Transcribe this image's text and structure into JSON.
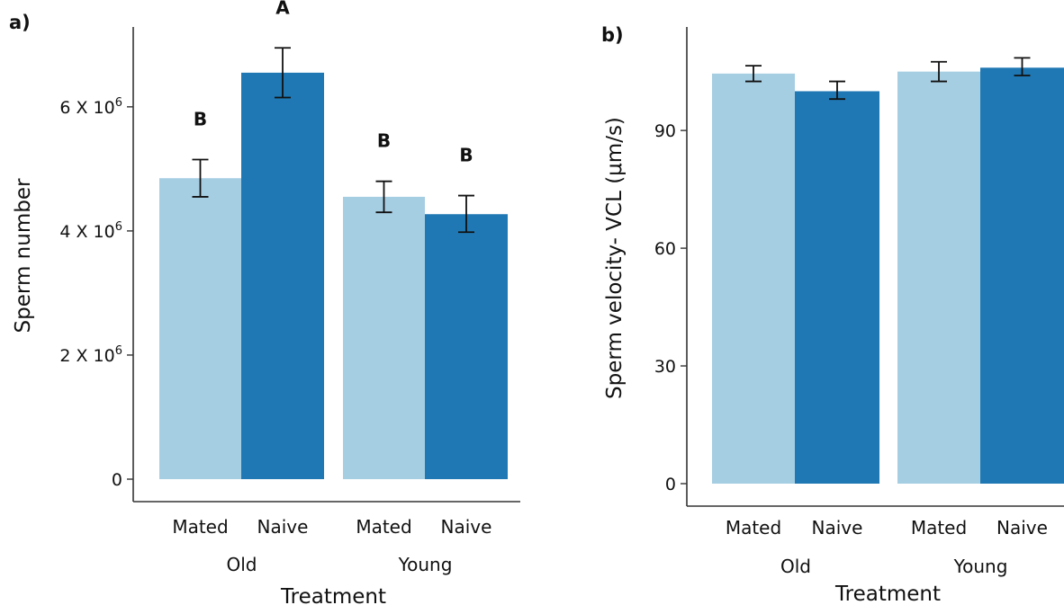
{
  "colors": {
    "mated": "#a6cee3",
    "naive": "#1f78b4",
    "axis": "#333333",
    "errorbar": "#111111"
  },
  "chart_data": [
    {
      "panel_label": "a)",
      "type": "bar",
      "xlabel": "Treatment",
      "ylabel": "Sperm number",
      "ylim": [
        0,
        7200000
      ],
      "yticks": [
        {
          "value": 0,
          "label": "0",
          "exp": ""
        },
        {
          "value": 2000000,
          "label": "2 X 10",
          "exp": "6"
        },
        {
          "value": 4000000,
          "label": "4 X 10",
          "exp": "6"
        },
        {
          "value": 6000000,
          "label": "6 X 10",
          "exp": "6"
        }
      ],
      "groups": [
        {
          "label": "Old",
          "bars": [
            {
              "category": "Mated",
              "value": 4850000,
              "err_low": 4550000,
              "err_high": 5150000,
              "letter": "B",
              "color": "#a6cee3"
            },
            {
              "category": "Naive",
              "value": 6550000,
              "err_low": 6150000,
              "err_high": 6950000,
              "letter": "A",
              "color": "#1f78b4"
            }
          ]
        },
        {
          "label": "Young",
          "bars": [
            {
              "category": "Mated",
              "value": 4550000,
              "err_low": 4300000,
              "err_high": 4800000,
              "letter": "B",
              "color": "#a6cee3"
            },
            {
              "category": "Naive",
              "value": 4270000,
              "err_low": 3980000,
              "err_high": 4570000,
              "letter": "B",
              "color": "#1f78b4"
            }
          ]
        }
      ]
    },
    {
      "panel_label": "b)",
      "type": "bar",
      "xlabel": "Treatment",
      "ylabel": "Sperm velocity- VCL (μm/s)",
      "ylim": [
        0,
        115
      ],
      "yticks": [
        {
          "value": 0,
          "label": "0",
          "exp": ""
        },
        {
          "value": 30,
          "label": "30",
          "exp": ""
        },
        {
          "value": 60,
          "label": "60",
          "exp": ""
        },
        {
          "value": 90,
          "label": "90",
          "exp": ""
        }
      ],
      "groups": [
        {
          "label": "Old",
          "bars": [
            {
              "category": "Mated",
              "value": 104.5,
              "err_low": 102.5,
              "err_high": 106.5,
              "letter": "",
              "color": "#a6cee3"
            },
            {
              "category": "Naive",
              "value": 100.0,
              "err_low": 98.0,
              "err_high": 102.5,
              "letter": "",
              "color": "#1f78b4"
            }
          ]
        },
        {
          "label": "Young",
          "bars": [
            {
              "category": "Mated",
              "value": 105.0,
              "err_low": 102.5,
              "err_high": 107.5,
              "letter": "",
              "color": "#a6cee3"
            },
            {
              "category": "Naive",
              "value": 106.0,
              "err_low": 104.0,
              "err_high": 108.5,
              "letter": "",
              "color": "#1f78b4"
            }
          ]
        }
      ]
    }
  ]
}
